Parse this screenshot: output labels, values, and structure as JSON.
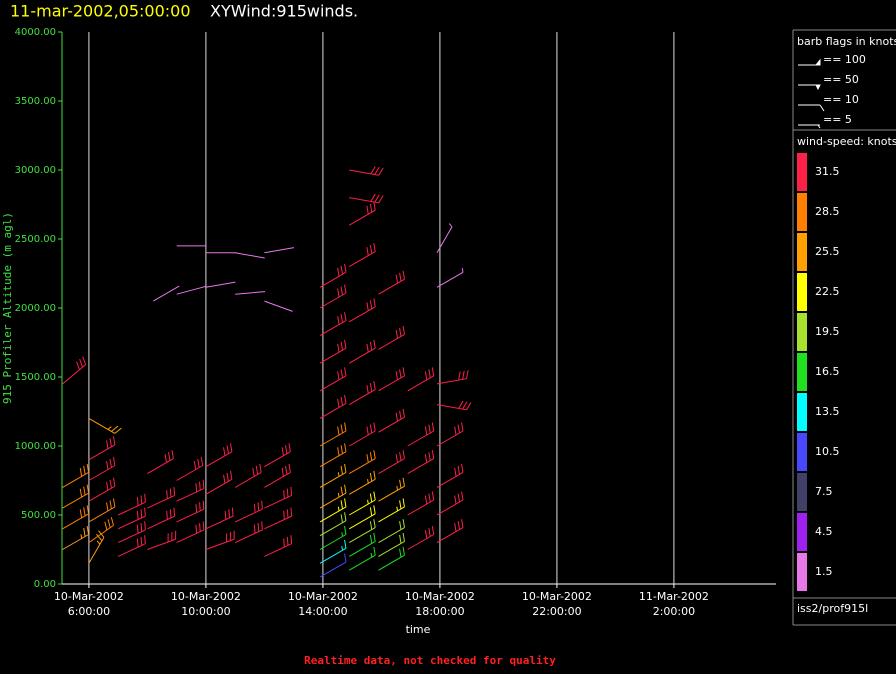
{
  "header": {
    "time": "11-mar-2002,05:00:00",
    "title": "XYWind:915winds."
  },
  "chart_data": {
    "type": "wind-barb",
    "ylabel": "915 Profiler Altitude (m agl)",
    "xlabel": "time",
    "ylim": [
      0,
      4000
    ],
    "yticks": [
      {
        "value": 0,
        "label": "0.00"
      },
      {
        "value": 500,
        "label": "500.00"
      },
      {
        "value": 1000,
        "label": "1000.00"
      },
      {
        "value": 1500,
        "label": "1500.00"
      },
      {
        "value": 2000,
        "label": "2000.00"
      },
      {
        "value": 2500,
        "label": "2500.00"
      },
      {
        "value": 3000,
        "label": "3000.00"
      },
      {
        "value": 3500,
        "label": "3500.00"
      },
      {
        "value": 4000,
        "label": "4000.00"
      }
    ],
    "xlim": [
      5.08,
      29.49
    ],
    "xticks": [
      {
        "value": 6,
        "label": "10-Mar-2002 6:00:00"
      },
      {
        "value": 10,
        "label": "10-Mar-2002 10:00:00"
      },
      {
        "value": 14,
        "label": "10-Mar-2002 14:00:00"
      },
      {
        "value": 18,
        "label": "10-Mar-2002 18:00:00"
      },
      {
        "value": 22,
        "label": "10-Mar-2002 22:00:00"
      },
      {
        "value": 26,
        "label": "11-Mar-2002 2:00:00"
      }
    ],
    "grid": true,
    "barbs": {
      "x": [
        5.1,
        5.1,
        5.1,
        5.1,
        5.1,
        6,
        6,
        6,
        6,
        6,
        6,
        6,
        7,
        7,
        7,
        7,
        8,
        8,
        8,
        8,
        8.2,
        9,
        9,
        9,
        9,
        9,
        9,
        10,
        10,
        10,
        10,
        10,
        10,
        11,
        11,
        11,
        11,
        11,
        12,
        12,
        12,
        12,
        12,
        12,
        12,
        13.9,
        13.9,
        13.9,
        13.9,
        13.9,
        13.9,
        13.9,
        13.9,
        13.9,
        13.9,
        13.9,
        13.9,
        13.9,
        13.9,
        13.9,
        14.9,
        14.9,
        14.9,
        14.9,
        14.9,
        14.9,
        14.9,
        14.9,
        14.9,
        14.9,
        14.9,
        14.9,
        14.9,
        14.9,
        14.9,
        15.9,
        15.9,
        15.9,
        15.9,
        15.9,
        15.9,
        15.9,
        15.9,
        15.9,
        15.9,
        16.9,
        16.9,
        16.9,
        16.9,
        16.9,
        17.9,
        17.9,
        17.9,
        17.9,
        17.9,
        17.9,
        17.9,
        17.9
      ],
      "altitude": [
        250,
        400,
        550,
        700,
        1450,
        150,
        300,
        450,
        600,
        750,
        900,
        1200,
        200,
        300,
        400,
        500,
        250,
        400,
        550,
        800,
        2050,
        300,
        450,
        600,
        750,
        2100,
        2450,
        250,
        400,
        650,
        850,
        2150,
        2400,
        300,
        450,
        700,
        2100,
        2400,
        200,
        400,
        550,
        700,
        850,
        2050,
        2400,
        50,
        150,
        250,
        350,
        450,
        550,
        700,
        850,
        1000,
        1200,
        1400,
        1600,
        1800,
        2000,
        2150,
        100,
        200,
        300,
        400,
        500,
        650,
        800,
        1000,
        1300,
        1600,
        1900,
        2300,
        2600,
        2800,
        3000,
        100,
        200,
        300,
        450,
        600,
        800,
        1100,
        1400,
        1700,
        2100,
        250,
        500,
        800,
        1000,
        1400,
        300,
        500,
        700,
        1000,
        1300,
        1450,
        2150,
        2400
      ],
      "speed": [
        27,
        28,
        29,
        30,
        31,
        26,
        28,
        30,
        31,
        31,
        32,
        26,
        31,
        31,
        31,
        31,
        31,
        31,
        31,
        31,
        2,
        31,
        31,
        31,
        31,
        2,
        2,
        31,
        31,
        31,
        31,
        2,
        2,
        31,
        31,
        31,
        2,
        2,
        31,
        31,
        31,
        31,
        31,
        2,
        2,
        12,
        14,
        17,
        20,
        23,
        25,
        27,
        28,
        29,
        31,
        31,
        31,
        31,
        31,
        31,
        16,
        18,
        20,
        22,
        24,
        27,
        28,
        31,
        31,
        31,
        31,
        31,
        31,
        31,
        31,
        18,
        19,
        21,
        24,
        27,
        31,
        31,
        31,
        31,
        31,
        31,
        31,
        31,
        31,
        31,
        31,
        31,
        31,
        31,
        31,
        31,
        3,
        3
      ],
      "direction": [
        60,
        60,
        60,
        60,
        50,
        30,
        55,
        60,
        60,
        60,
        60,
        120,
        65,
        65,
        65,
        65,
        70,
        65,
        65,
        60,
        60,
        65,
        65,
        65,
        60,
        75,
        90,
        70,
        65,
        60,
        60,
        80,
        90,
        65,
        65,
        60,
        85,
        100,
        65,
        65,
        65,
        60,
        60,
        110,
        80,
        60,
        60,
        60,
        60,
        60,
        60,
        60,
        60,
        60,
        60,
        60,
        60,
        60,
        60,
        60,
        60,
        60,
        60,
        60,
        60,
        60,
        60,
        60,
        60,
        60,
        60,
        60,
        60,
        100,
        100,
        60,
        60,
        60,
        60,
        60,
        60,
        60,
        60,
        60,
        60,
        60,
        60,
        60,
        60,
        60,
        60,
        60,
        60,
        60,
        100,
        80,
        60,
        30
      ]
    },
    "flag_legend": {
      "title": "barb flags in knots",
      "items": [
        "== 100",
        "== 50",
        "== 10",
        "== 5"
      ]
    },
    "colorbar": {
      "title": "wind-speed: knots",
      "ticks": [
        1.5,
        4.5,
        7.5,
        10.5,
        13.5,
        16.5,
        19.5,
        22.5,
        25.5,
        28.5,
        31.5
      ],
      "colors": [
        "#e878e8",
        "#a020f0",
        "#404068",
        "#4848ff",
        "#00ffff",
        "#20e020",
        "#a8e030",
        "#ffff00",
        "#ffa000",
        "#ff8000",
        "#ff2048"
      ]
    },
    "source": "iss2/prof915l",
    "footer": "Realtime data, not checked for quality"
  }
}
